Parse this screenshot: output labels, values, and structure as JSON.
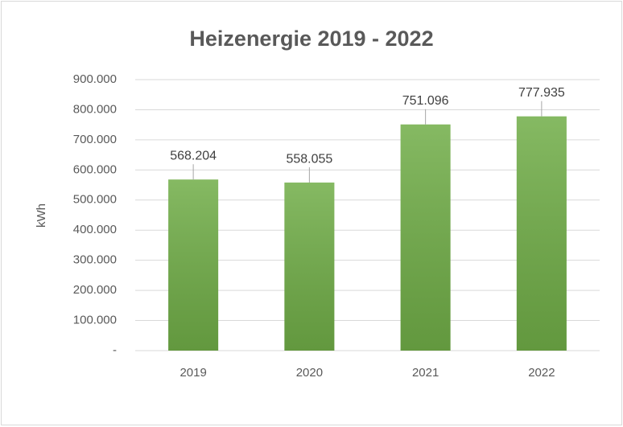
{
  "chart_data": {
    "type": "bar",
    "title": "Heizenergie 2019 - 2022",
    "y_label": "kWh",
    "categories": [
      "2019",
      "2020",
      "2021",
      "2022"
    ],
    "values": [
      568204,
      558055,
      751096,
      777935
    ],
    "value_labels": [
      "568.204",
      "558.055",
      "751.096",
      "777.935"
    ],
    "color": "#70ad47",
    "ylim": [
      0,
      900000
    ],
    "yticks": [
      {
        "value": 0,
        "label": "-"
      },
      {
        "value": 100000,
        "label": "100.000"
      },
      {
        "value": 200000,
        "label": "200.000"
      },
      {
        "value": 300000,
        "label": "300.000"
      },
      {
        "value": 400000,
        "label": "400.000"
      },
      {
        "value": 500000,
        "label": "500.000"
      },
      {
        "value": 600000,
        "label": "600.000"
      },
      {
        "value": 700000,
        "label": "700.000"
      },
      {
        "value": 800000,
        "label": "800.000"
      },
      {
        "value": 900000,
        "label": "900.000"
      }
    ],
    "grid": true
  }
}
